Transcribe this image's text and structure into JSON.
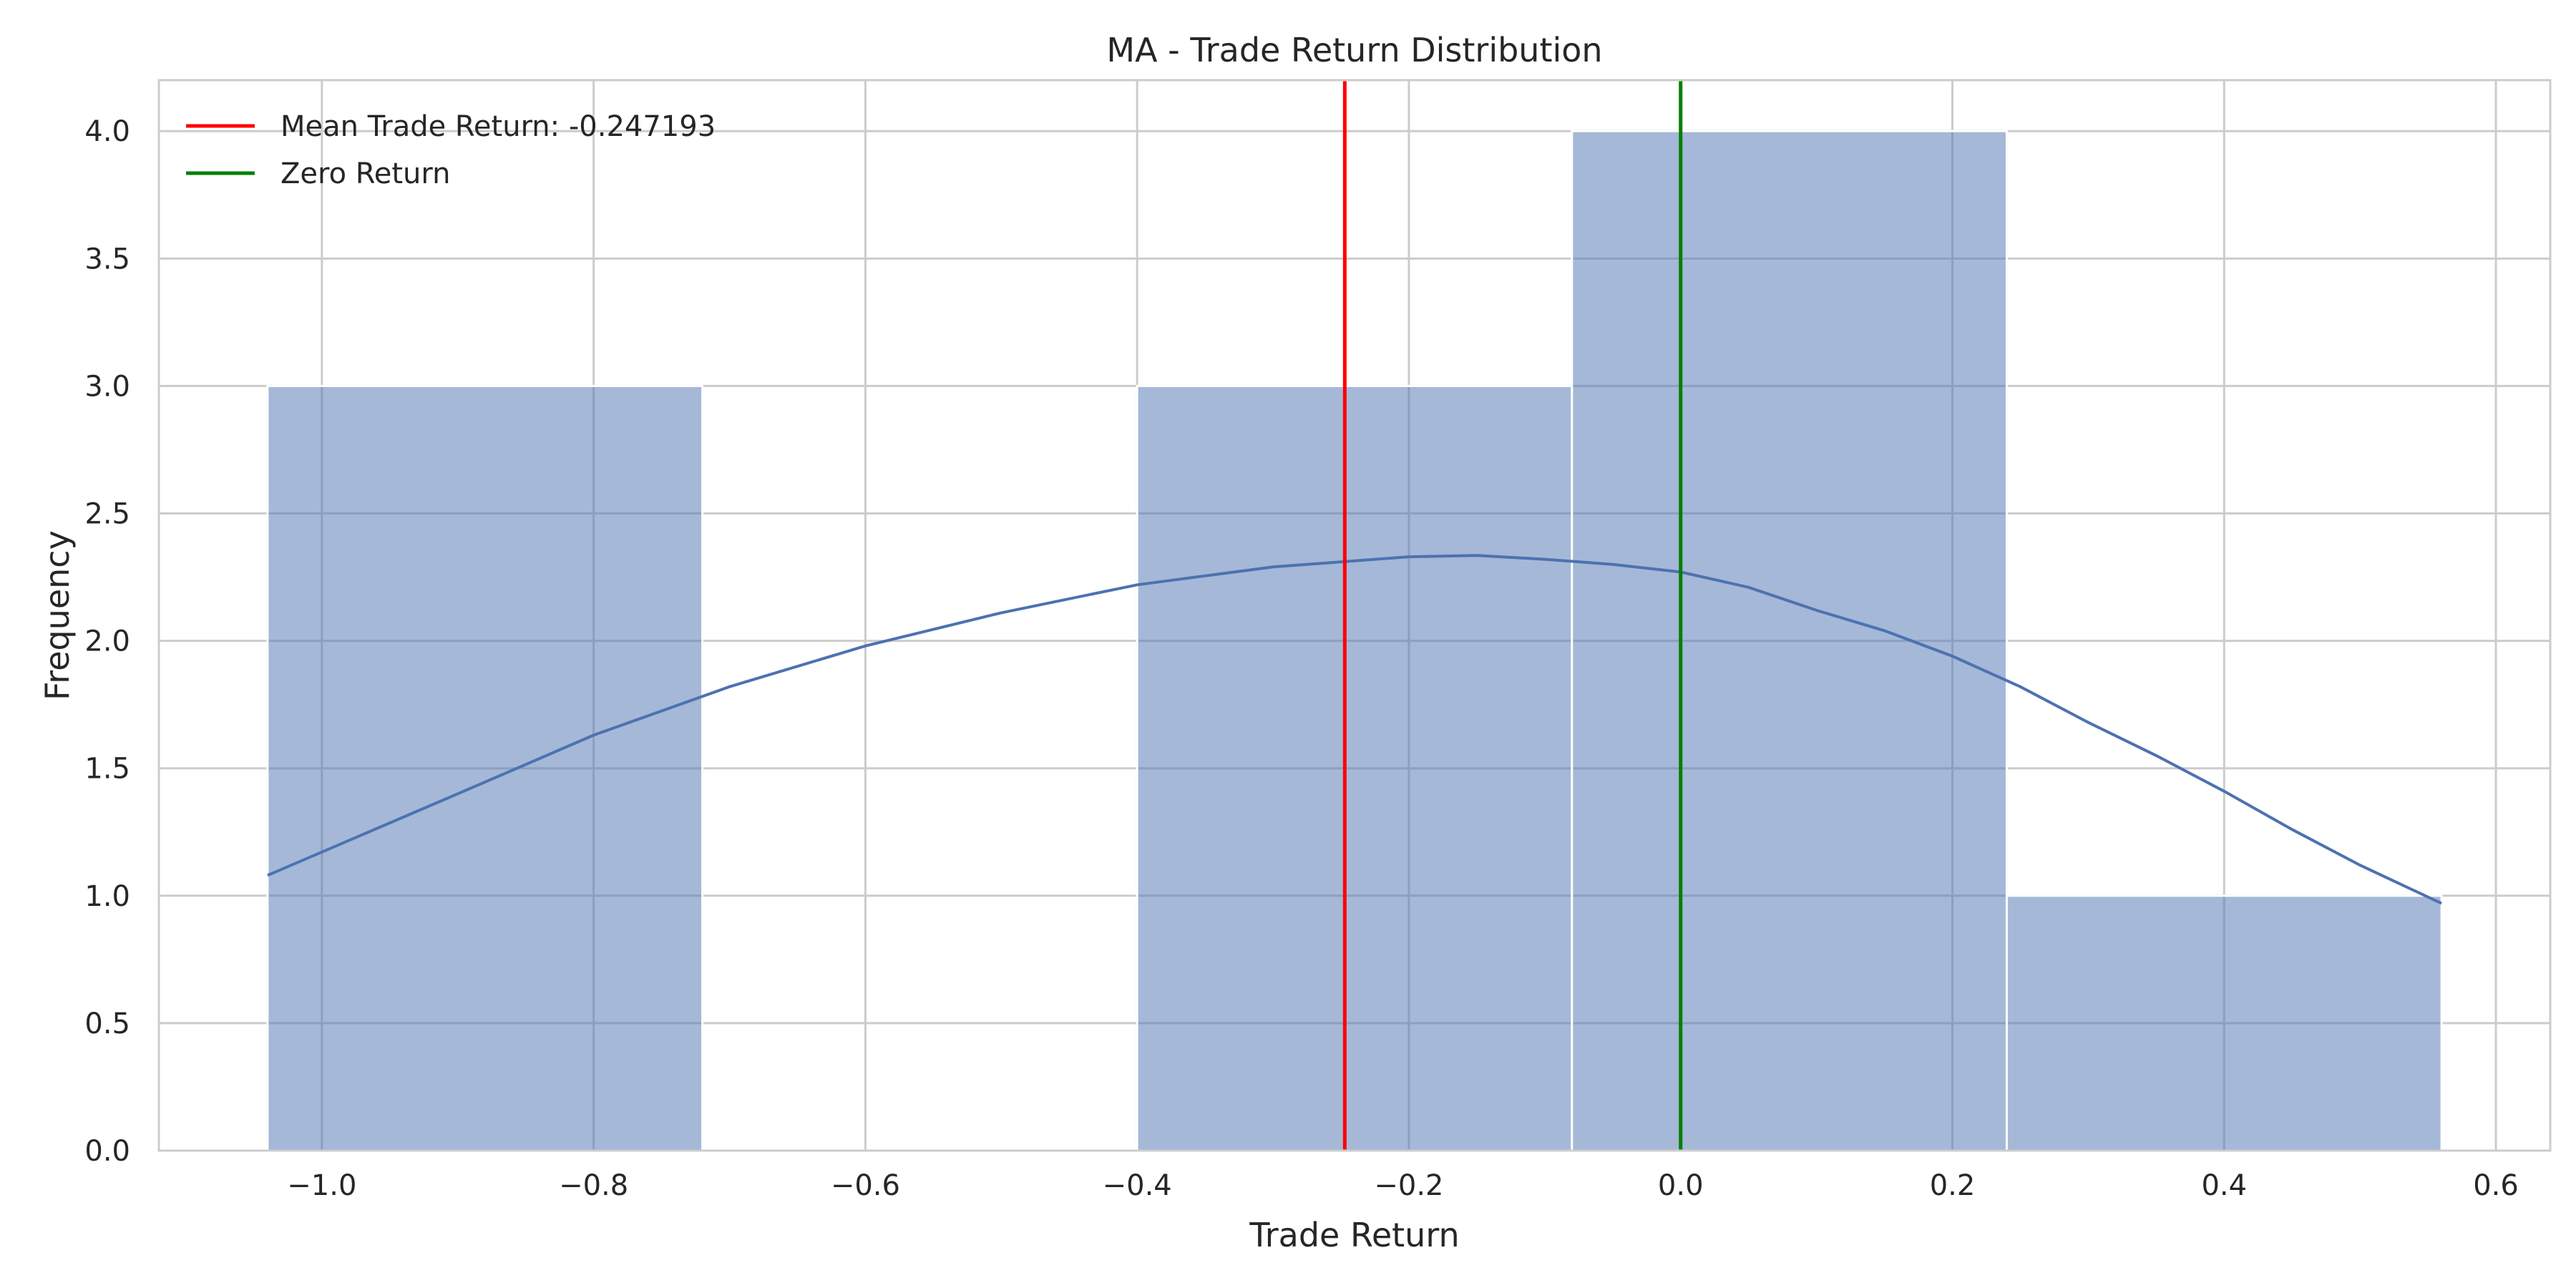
{
  "chart_data": {
    "type": "bar",
    "title": "MA - Trade Return Distribution",
    "xlabel": "Trade Return",
    "ylabel": "Frequency",
    "xlim": [
      -1.12,
      0.64
    ],
    "ylim": [
      0.0,
      4.2
    ],
    "xticks": [
      -1.0,
      -0.8,
      -0.6,
      -0.4,
      -0.2,
      0.0,
      0.2,
      0.4,
      0.6
    ],
    "xtick_labels": [
      "−1.0",
      "−0.8",
      "−0.6",
      "−0.4",
      "−0.2",
      "0.0",
      "0.2",
      "0.4",
      "0.6"
    ],
    "yticks": [
      0.0,
      0.5,
      1.0,
      1.5,
      2.0,
      2.5,
      3.0,
      3.5,
      4.0
    ],
    "ytick_labels": [
      "0.0",
      "0.5",
      "1.0",
      "1.5",
      "2.0",
      "2.5",
      "3.0",
      "3.5",
      "4.0"
    ],
    "grid": true,
    "bins": [
      {
        "x0": -1.04,
        "x1": -0.72,
        "count": 3
      },
      {
        "x0": -0.72,
        "x1": -0.4,
        "count": 0
      },
      {
        "x0": -0.4,
        "x1": -0.08,
        "count": 3
      },
      {
        "x0": -0.08,
        "x1": 0.24,
        "count": 4
      },
      {
        "x0": 0.24,
        "x1": 0.56,
        "count": 1
      }
    ],
    "bar_color": "#4c72b0",
    "bar_opacity": 0.5,
    "kde": {
      "color": "#4c72b0",
      "x": [
        -1.04,
        -0.9,
        -0.8,
        -0.7,
        -0.6,
        -0.5,
        -0.4,
        -0.3,
        -0.25,
        -0.2,
        -0.15,
        -0.1,
        -0.05,
        0.0,
        0.05,
        0.1,
        0.15,
        0.2,
        0.25,
        0.3,
        0.35,
        0.4,
        0.45,
        0.5,
        0.56
      ],
      "y": [
        1.08,
        1.4,
        1.63,
        1.82,
        1.98,
        2.11,
        2.22,
        2.29,
        2.31,
        2.33,
        2.335,
        2.32,
        2.3,
        2.27,
        2.21,
        2.12,
        2.04,
        1.94,
        1.82,
        1.68,
        1.55,
        1.41,
        1.26,
        1.12,
        0.97
      ]
    },
    "vlines": [
      {
        "name": "Mean Trade Return: -0.247193",
        "x": -0.247193,
        "color": "#ff0000"
      },
      {
        "name": "Zero Return",
        "x": 0.0,
        "color": "#008000"
      }
    ],
    "legend_position": "top-left"
  }
}
